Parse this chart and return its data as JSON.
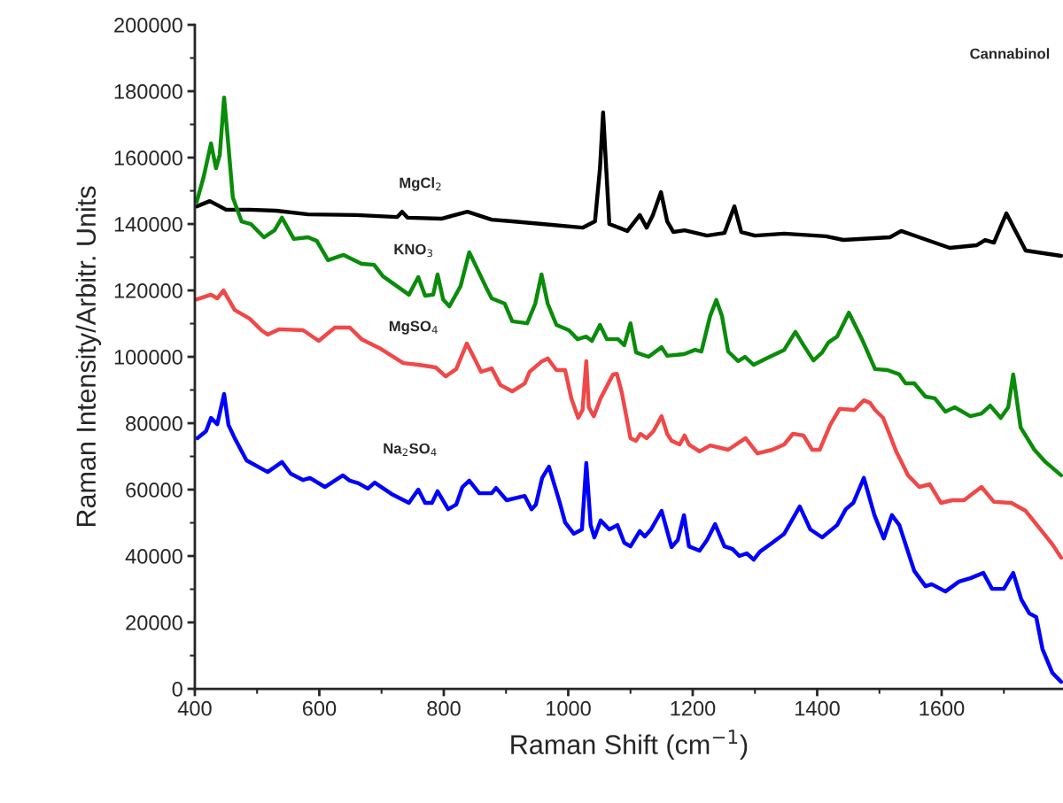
{
  "chart_data": {
    "type": "line",
    "title": "Cannabinol",
    "xlabel": "Raman Shift (cm$^{−1}$)",
    "ylabel": "Raman Intensity/Arbitr. Units",
    "xlim": [
      400,
      1795
    ],
    "xticks": [
      400,
      600,
      800,
      1000,
      1200,
      1400,
      1600
    ],
    "ylim": [
      0,
      200000
    ],
    "yticks": [
      0,
      20000,
      40000,
      60000,
      80000,
      100000,
      120000,
      140000,
      160000,
      180000,
      200000
    ],
    "grid": false,
    "legend": false,
    "marker": "none",
    "line_style": "solid",
    "series": [
      {
        "name": "MgCl$_{2}$",
        "color": "#000000",
        "x": [
          403,
          424,
          450,
          488,
          531,
          582,
          659,
          725,
          733,
          742,
          796,
          838,
          877,
          910,
          958,
          1023,
          1043,
          1051,
          1056,
          1061,
          1066,
          1095,
          1115,
          1126,
          1136,
          1149,
          1159,
          1169,
          1187,
          1223,
          1251,
          1267,
          1278,
          1300,
          1347,
          1414,
          1442,
          1517,
          1535,
          1564,
          1613,
          1656,
          1670,
          1684,
          1704,
          1735,
          1792
        ],
        "values": [
          145300,
          146900,
          144300,
          144300,
          144000,
          142900,
          142700,
          142100,
          143700,
          141900,
          141600,
          143700,
          141300,
          140800,
          140000,
          138900,
          140800,
          156800,
          173600,
          156800,
          140000,
          137900,
          142700,
          138900,
          142700,
          149600,
          140800,
          137600,
          138100,
          136500,
          137300,
          145300,
          137600,
          136500,
          137100,
          136300,
          135200,
          136000,
          137900,
          136000,
          132800,
          133600,
          135200,
          134400,
          143200,
          132000,
          130400
        ]
      },
      {
        "name": "KNO$_{3}$",
        "color": "#0a8c0a",
        "x": [
          403,
          414,
          426,
          434,
          440,
          447,
          453,
          461,
          475,
          490,
          511,
          528,
          540,
          559,
          582,
          596,
          614,
          639,
          668,
          688,
          702,
          744,
          759,
          770,
          783,
          790,
          799,
          809,
          827,
          841,
          867,
          877,
          898,
          910,
          934,
          947,
          957,
          967,
          981,
          1001,
          1015,
          1029,
          1038,
          1051,
          1062,
          1080,
          1090,
          1100,
          1109,
          1129,
          1150,
          1159,
          1186,
          1204,
          1214,
          1228,
          1238,
          1247,
          1257,
          1273,
          1284,
          1298,
          1318,
          1347,
          1365,
          1378,
          1394,
          1408,
          1418,
          1432,
          1451,
          1472,
          1493,
          1513,
          1532,
          1542,
          1556,
          1574,
          1589,
          1606,
          1621,
          1646,
          1664,
          1678,
          1695,
          1707,
          1715,
          1727,
          1749,
          1767,
          1792
        ],
        "values": [
          146700,
          154100,
          164300,
          156800,
          160800,
          178100,
          165600,
          148000,
          140800,
          140000,
          136000,
          138100,
          141900,
          135500,
          136000,
          134900,
          129100,
          130700,
          128000,
          127700,
          124300,
          118700,
          124000,
          118400,
          118700,
          124800,
          117300,
          115200,
          121300,
          131500,
          121300,
          117600,
          116000,
          110700,
          110100,
          116000,
          124800,
          116000,
          109600,
          108000,
          105300,
          106100,
          104800,
          109600,
          105300,
          105300,
          103500,
          110100,
          101300,
          100000,
          102900,
          100300,
          100800,
          102100,
          101600,
          112300,
          117100,
          112300,
          101600,
          98700,
          100000,
          97600,
          99500,
          102100,
          107500,
          103500,
          98900,
          101300,
          104300,
          106100,
          113300,
          105300,
          96300,
          96000,
          94700,
          92000,
          92000,
          88000,
          87500,
          83500,
          84800,
          82100,
          82900,
          85300,
          81600,
          84800,
          94700,
          78700,
          72000,
          68300,
          64300
        ]
      },
      {
        "name": "MgSO$_{4}$",
        "color": "#f04848",
        "x": [
          403,
          426,
          436,
          446,
          464,
          488,
          507,
          517,
          535,
          574,
          599,
          625,
          649,
          668,
          696,
          735,
          759,
          787,
          803,
          820,
          837,
          851,
          860,
          877,
          891,
          910,
          930,
          938,
          958,
          967,
          981,
          995,
          1005,
          1016,
          1023,
          1029,
          1033,
          1041,
          1052,
          1072,
          1078,
          1086,
          1100,
          1109,
          1116,
          1126,
          1137,
          1150,
          1159,
          1166,
          1179,
          1187,
          1194,
          1211,
          1228,
          1257,
          1285,
          1304,
          1328,
          1347,
          1361,
          1378,
          1392,
          1404,
          1421,
          1436,
          1460,
          1475,
          1485,
          1493,
          1506,
          1527,
          1546,
          1564,
          1581,
          1599,
          1617,
          1636,
          1664,
          1684,
          1712,
          1735,
          1759,
          1778,
          1792
        ],
        "values": [
          117300,
          118700,
          117600,
          120000,
          114100,
          111500,
          108000,
          106700,
          108300,
          108000,
          104800,
          108800,
          108800,
          105300,
          102700,
          98100,
          97600,
          96800,
          94100,
          96300,
          104000,
          98900,
          95500,
          96500,
          91500,
          89600,
          92000,
          95500,
          98700,
          99500,
          96000,
          96000,
          87500,
          81600,
          84000,
          98700,
          84800,
          82100,
          87500,
          94700,
          94900,
          89300,
          75500,
          74700,
          76800,
          75500,
          77600,
          82100,
          76800,
          74700,
          73600,
          76300,
          73600,
          71500,
          73300,
          72000,
          75500,
          70900,
          72000,
          73600,
          76800,
          76300,
          72000,
          72000,
          79500,
          84300,
          84000,
          86900,
          86100,
          84000,
          81600,
          71500,
          64300,
          60800,
          61600,
          56000,
          56800,
          56800,
          60800,
          56300,
          56000,
          53600,
          48000,
          43500,
          39500
        ]
      },
      {
        "name": "Na$_{2}$SO$_{4}$",
        "color": "#0000ff",
        "x": [
          404,
          418,
          426,
          436,
          447,
          454,
          464,
          483,
          517,
          540,
          554,
          574,
          585,
          609,
          638,
          649,
          663,
          678,
          689,
          716,
          744,
          759,
          770,
          781,
          790,
          807,
          820,
          830,
          841,
          857,
          877,
          884,
          901,
          930,
          941,
          948,
          958,
          969,
          986,
          995,
          1009,
          1022,
          1029,
          1036,
          1042,
          1052,
          1066,
          1079,
          1090,
          1100,
          1115,
          1123,
          1133,
          1150,
          1166,
          1176,
          1186,
          1194,
          1211,
          1223,
          1236,
          1251,
          1264,
          1275,
          1287,
          1298,
          1308,
          1328,
          1347,
          1372,
          1389,
          1408,
          1432,
          1446,
          1458,
          1475,
          1492,
          1507,
          1520,
          1532,
          1556,
          1574,
          1584,
          1606,
          1628,
          1646,
          1667,
          1681,
          1700,
          1715,
          1728,
          1741,
          1752,
          1762,
          1778,
          1792
        ],
        "values": [
          75500,
          77600,
          81600,
          79700,
          88800,
          79500,
          75500,
          68800,
          65300,
          68300,
          64800,
          62900,
          63500,
          60800,
          64300,
          62700,
          61900,
          60300,
          62100,
          58700,
          56000,
          60000,
          56000,
          56000,
          59500,
          54100,
          55500,
          60800,
          62700,
          58900,
          58900,
          60500,
          56800,
          58100,
          54100,
          55500,
          63500,
          66900,
          56300,
          50100,
          46700,
          48000,
          68000,
          49300,
          45600,
          50700,
          48000,
          49300,
          44000,
          42900,
          47500,
          45900,
          48000,
          53600,
          42700,
          44800,
          52300,
          42900,
          41600,
          44800,
          49600,
          42900,
          42100,
          40000,
          40800,
          38900,
          41300,
          44000,
          46700,
          54900,
          48000,
          45600,
          49300,
          54100,
          56000,
          63500,
          52300,
          45300,
          52300,
          49300,
          35500,
          30900,
          31500,
          29300,
          32300,
          33300,
          34900,
          30100,
          30100,
          34900,
          26900,
          22700,
          21600,
          12000,
          4800,
          2100
        ]
      }
    ]
  }
}
